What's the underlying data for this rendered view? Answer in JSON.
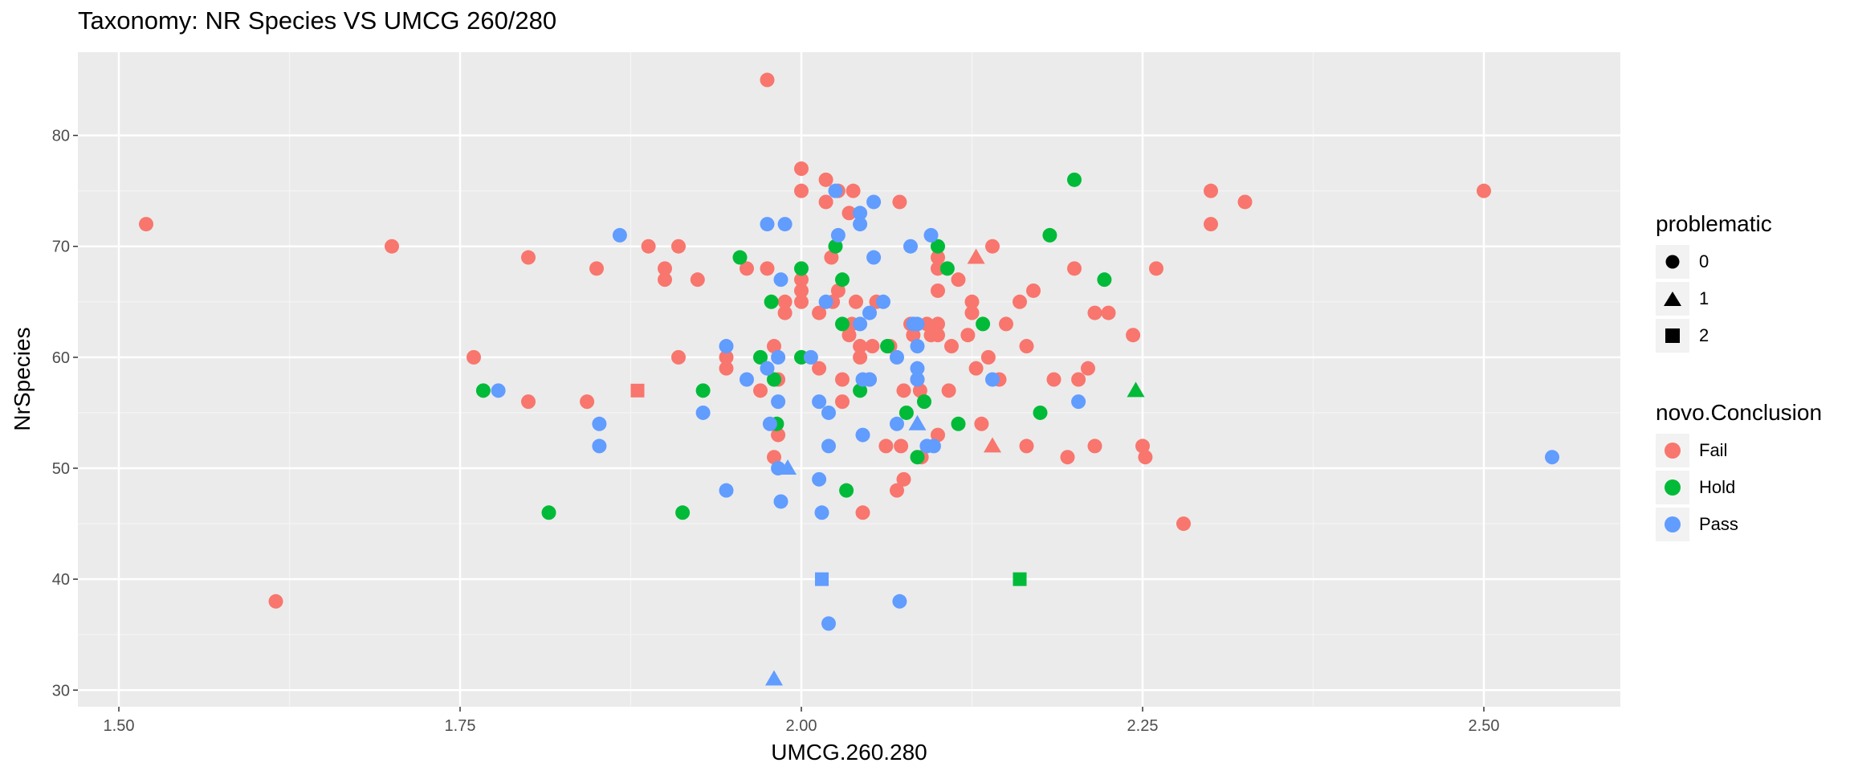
{
  "chart_data": {
    "type": "scatter",
    "title": "Taxonomy: NR Species VS UMCG 260/280",
    "xlabel": "UMCG.260.280",
    "ylabel": "NrSpecies",
    "xlim": [
      1.47,
      2.6
    ],
    "ylim": [
      28.5,
      87.5
    ],
    "x_ticks": [
      1.5,
      1.75,
      2.0,
      2.25,
      2.5
    ],
    "x_tick_labels": [
      "1.50",
      "1.75",
      "2.00",
      "2.25",
      "2.50"
    ],
    "y_ticks": [
      30,
      40,
      50,
      60,
      70,
      80
    ],
    "y_tick_labels": [
      "30",
      "40",
      "50",
      "60",
      "70",
      "80"
    ],
    "grid": true,
    "legend_position": "right",
    "legend": {
      "shape": {
        "title": "problematic",
        "items": [
          {
            "label": "0",
            "shape": "circle"
          },
          {
            "label": "1",
            "shape": "triangle"
          },
          {
            "label": "2",
            "shape": "square"
          }
        ]
      },
      "color": {
        "title": "novo.Conclusion",
        "items": [
          {
            "label": "Fail",
            "color": "#F8766D"
          },
          {
            "label": "Hold",
            "color": "#00BA38"
          },
          {
            "label": "Pass",
            "color": "#619CFF"
          }
        ]
      }
    },
    "series": [
      {
        "name": "Fail",
        "color": "#F8766D",
        "points": [
          [
            1.52,
            72,
            0
          ],
          [
            1.615,
            38,
            0
          ],
          [
            1.7,
            70,
            0
          ],
          [
            1.76,
            60,
            0
          ],
          [
            1.8,
            69,
            0
          ],
          [
            1.8,
            56,
            0
          ],
          [
            1.843,
            56,
            0
          ],
          [
            1.85,
            68,
            0
          ],
          [
            1.88,
            57,
            2
          ],
          [
            1.888,
            70,
            0
          ],
          [
            1.9,
            68,
            0
          ],
          [
            1.9,
            67,
            0
          ],
          [
            1.91,
            70,
            0
          ],
          [
            1.91,
            60,
            0
          ],
          [
            1.924,
            67,
            0
          ],
          [
            1.945,
            60,
            0
          ],
          [
            1.945,
            59,
            0
          ],
          [
            1.96,
            68,
            0
          ],
          [
            1.97,
            57,
            0
          ],
          [
            1.975,
            85,
            0
          ],
          [
            1.975,
            68,
            0
          ],
          [
            1.98,
            51,
            0
          ],
          [
            1.983,
            53,
            0
          ],
          [
            1.98,
            61,
            0
          ],
          [
            1.983,
            58,
            0
          ],
          [
            1.988,
            65,
            0
          ],
          [
            1.988,
            64,
            0
          ],
          [
            2.0,
            77,
            0
          ],
          [
            2.0,
            75,
            0
          ],
          [
            2.0,
            67,
            0
          ],
          [
            2.0,
            66,
            0
          ],
          [
            2.0,
            65,
            0
          ],
          [
            2.013,
            64,
            0
          ],
          [
            2.013,
            59,
            0
          ],
          [
            2.018,
            76,
            0
          ],
          [
            2.018,
            74,
            0
          ],
          [
            2.022,
            69,
            0
          ],
          [
            2.023,
            65,
            0
          ],
          [
            2.027,
            75,
            0
          ],
          [
            2.027,
            66,
            0
          ],
          [
            2.03,
            58,
            0
          ],
          [
            2.03,
            56,
            0
          ],
          [
            2.035,
            73,
            0
          ],
          [
            2.035,
            62,
            0
          ],
          [
            2.037,
            63,
            0
          ],
          [
            2.038,
            75,
            0
          ],
          [
            2.04,
            65,
            0
          ],
          [
            2.043,
            61,
            0
          ],
          [
            2.043,
            60,
            0
          ],
          [
            2.045,
            46,
            0
          ],
          [
            2.05,
            58,
            0
          ],
          [
            2.052,
            61,
            0
          ],
          [
            2.055,
            65,
            0
          ],
          [
            2.062,
            52,
            0
          ],
          [
            2.065,
            61,
            0
          ],
          [
            2.07,
            48,
            0
          ],
          [
            2.072,
            74,
            0
          ],
          [
            2.073,
            52,
            0
          ],
          [
            2.075,
            57,
            0
          ],
          [
            2.075,
            49,
            0
          ],
          [
            2.08,
            63,
            0
          ],
          [
            2.082,
            62,
            0
          ],
          [
            2.085,
            58,
            0
          ],
          [
            2.087,
            57,
            0
          ],
          [
            2.088,
            51,
            0
          ],
          [
            2.092,
            63,
            0
          ],
          [
            2.095,
            62,
            0
          ],
          [
            2.1,
            69,
            0
          ],
          [
            2.1,
            68,
            0
          ],
          [
            2.1,
            66,
            0
          ],
          [
            2.1,
            63,
            0
          ],
          [
            2.1,
            62,
            0
          ],
          [
            2.1,
            53,
            0
          ],
          [
            2.108,
            57,
            0
          ],
          [
            2.11,
            61,
            0
          ],
          [
            2.115,
            67,
            0
          ],
          [
            2.122,
            62,
            0
          ],
          [
            2.125,
            65,
            0
          ],
          [
            2.125,
            64,
            0
          ],
          [
            2.128,
            59,
            0
          ],
          [
            2.128,
            69,
            1
          ],
          [
            2.132,
            54,
            0
          ],
          [
            2.137,
            60,
            0
          ],
          [
            2.14,
            70,
            0
          ],
          [
            2.14,
            52,
            1
          ],
          [
            2.145,
            58,
            0
          ],
          [
            2.15,
            63,
            0
          ],
          [
            2.16,
            65,
            0
          ],
          [
            2.165,
            61,
            0
          ],
          [
            2.165,
            52,
            0
          ],
          [
            2.17,
            66,
            0
          ],
          [
            2.185,
            58,
            0
          ],
          [
            2.195,
            51,
            0
          ],
          [
            2.2,
            68,
            0
          ],
          [
            2.203,
            58,
            0
          ],
          [
            2.21,
            59,
            0
          ],
          [
            2.215,
            64,
            0
          ],
          [
            2.215,
            52,
            0
          ],
          [
            2.225,
            64,
            0
          ],
          [
            2.243,
            62,
            0
          ],
          [
            2.25,
            52,
            0
          ],
          [
            2.252,
            51,
            0
          ],
          [
            2.26,
            68,
            0
          ],
          [
            2.28,
            45,
            0
          ],
          [
            2.3,
            75,
            0
          ],
          [
            2.3,
            72,
            0
          ],
          [
            2.325,
            74,
            0
          ],
          [
            2.5,
            75,
            0
          ]
        ]
      },
      {
        "name": "Hold",
        "color": "#00BA38",
        "points": [
          [
            1.767,
            57,
            0
          ],
          [
            1.815,
            46,
            0
          ],
          [
            1.913,
            46,
            0
          ],
          [
            1.928,
            57,
            0
          ],
          [
            1.955,
            69,
            0
          ],
          [
            1.97,
            60,
            0
          ],
          [
            1.978,
            65,
            0
          ],
          [
            1.98,
            58,
            0
          ],
          [
            1.982,
            54,
            0
          ],
          [
            2.0,
            68,
            0
          ],
          [
            2.0,
            60,
            0
          ],
          [
            2.025,
            70,
            0
          ],
          [
            2.03,
            67,
            0
          ],
          [
            2.03,
            63,
            0
          ],
          [
            2.033,
            48,
            0
          ],
          [
            2.043,
            57,
            0
          ],
          [
            2.063,
            61,
            0
          ],
          [
            2.077,
            55,
            0
          ],
          [
            2.085,
            51,
            0
          ],
          [
            2.09,
            56,
            0
          ],
          [
            2.1,
            70,
            0
          ],
          [
            2.107,
            68,
            0
          ],
          [
            2.115,
            54,
            0
          ],
          [
            2.133,
            63,
            0
          ],
          [
            2.16,
            40,
            2
          ],
          [
            2.175,
            55,
            0
          ],
          [
            2.182,
            71,
            0
          ],
          [
            2.2,
            76,
            0
          ],
          [
            2.222,
            67,
            0
          ],
          [
            2.245,
            57,
            1
          ]
        ]
      },
      {
        "name": "Pass",
        "color": "#619CFF",
        "points": [
          [
            1.778,
            57,
            0
          ],
          [
            1.852,
            54,
            0
          ],
          [
            1.852,
            52,
            0
          ],
          [
            1.867,
            71,
            0
          ],
          [
            1.928,
            55,
            0
          ],
          [
            1.945,
            61,
            0
          ],
          [
            1.945,
            48,
            0
          ],
          [
            1.96,
            58,
            0
          ],
          [
            1.975,
            72,
            0
          ],
          [
            1.975,
            59,
            0
          ],
          [
            1.977,
            54,
            0
          ],
          [
            1.98,
            31,
            1
          ],
          [
            1.983,
            60,
            0
          ],
          [
            1.983,
            56,
            0
          ],
          [
            1.983,
            50,
            0
          ],
          [
            1.985,
            47,
            0
          ],
          [
            1.985,
            67,
            0
          ],
          [
            1.988,
            72,
            0
          ],
          [
            1.99,
            50,
            1
          ],
          [
            2.007,
            60,
            0
          ],
          [
            2.013,
            56,
            0
          ],
          [
            2.013,
            49,
            0
          ],
          [
            2.015,
            46,
            0
          ],
          [
            2.015,
            40,
            2
          ],
          [
            2.018,
            65,
            0
          ],
          [
            2.02,
            55,
            0
          ],
          [
            2.02,
            52,
            0
          ],
          [
            2.02,
            36,
            0
          ],
          [
            2.025,
            75,
            0
          ],
          [
            2.027,
            71,
            0
          ],
          [
            2.043,
            73,
            0
          ],
          [
            2.043,
            72,
            0
          ],
          [
            2.043,
            63,
            0
          ],
          [
            2.045,
            53,
            0
          ],
          [
            2.045,
            58,
            0
          ],
          [
            2.05,
            64,
            0
          ],
          [
            2.05,
            58,
            0
          ],
          [
            2.053,
            74,
            0
          ],
          [
            2.053,
            69,
            0
          ],
          [
            2.06,
            65,
            0
          ],
          [
            2.07,
            60,
            0
          ],
          [
            2.07,
            54,
            0
          ],
          [
            2.072,
            38,
            0
          ],
          [
            2.08,
            70,
            0
          ],
          [
            2.082,
            63,
            0
          ],
          [
            2.085,
            61,
            0
          ],
          [
            2.085,
            59,
            0
          ],
          [
            2.085,
            58,
            0
          ],
          [
            2.085,
            54,
            1
          ],
          [
            2.085,
            63,
            0
          ],
          [
            2.092,
            52,
            0
          ],
          [
            2.095,
            71,
            0
          ],
          [
            2.097,
            52,
            0
          ],
          [
            2.14,
            58,
            0
          ],
          [
            2.203,
            56,
            0
          ],
          [
            2.55,
            51,
            0
          ]
        ]
      }
    ]
  }
}
